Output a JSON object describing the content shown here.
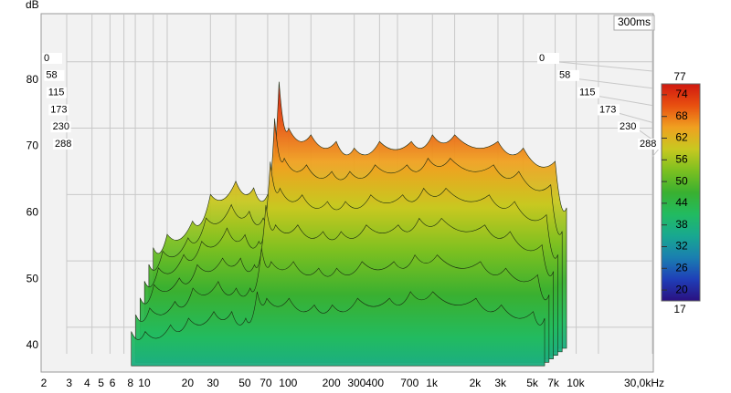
{
  "chart_data": {
    "type": "waterfall",
    "y_label": "dB",
    "z_label": "300ms",
    "xlog": true,
    "grid": true,
    "xlim": [
      2,
      30000
    ],
    "xticks": [
      2,
      3,
      4,
      5,
      6,
      8,
      10,
      20,
      30,
      50,
      70,
      100,
      200,
      300,
      400,
      700,
      {
        "value": 1000,
        "label": "1k"
      },
      {
        "value": 2000,
        "label": "2k"
      },
      {
        "value": 3000,
        "label": "3k"
      },
      {
        "value": 5000,
        "label": "5k"
      },
      {
        "value": 7000,
        "label": "7k"
      },
      {
        "value": 10000,
        "label": "10k"
      },
      {
        "value": 30000,
        "label": "30,0kHz"
      }
    ],
    "ylim": [
      36,
      90
    ],
    "yticks": [
      40,
      50,
      60,
      70,
      80
    ],
    "zlim": [
      0,
      300
    ],
    "zticks": [
      0,
      58,
      115,
      173,
      230,
      288
    ],
    "clim": [
      17,
      77
    ],
    "cticks": [
      20,
      26,
      32,
      38,
      44,
      50,
      56,
      62,
      68,
      74
    ],
    "colorscale": [
      "#2a1080",
      "#1f3fb8",
      "#1a7fb0",
      "#18a890",
      "#22bb60",
      "#3ab030",
      "#7cc020",
      "#c8c820",
      "#f0a020",
      "#e85010",
      "#d01810"
    ],
    "x": [
      8,
      10,
      15,
      20,
      30,
      40,
      50,
      60,
      70,
      100,
      150,
      200,
      300,
      500,
      700,
      1000,
      2000,
      3000,
      5000,
      6000
    ],
    "slices": [
      {
        "time": 0,
        "values": [
          52,
          54,
          56,
          60,
          62,
          61,
          60,
          77,
          70,
          69,
          68,
          67,
          68,
          68,
          69,
          69,
          68,
          67,
          65,
          58
        ]
      },
      {
        "time": 58,
        "values": [
          50,
          52,
          54,
          57,
          59,
          58,
          57,
          72,
          66,
          65,
          64,
          64,
          65,
          65,
          66,
          66,
          65,
          64,
          62,
          55
        ]
      },
      {
        "time": 115,
        "values": [
          48,
          50,
          52,
          54,
          56,
          55,
          54,
          66,
          62,
          61,
          60,
          60,
          61,
          61,
          62,
          62,
          61,
          60,
          58,
          52
        ]
      },
      {
        "time": 173,
        "values": [
          46,
          48,
          49,
          51,
          52,
          52,
          51,
          60,
          57,
          57,
          56,
          56,
          57,
          57,
          58,
          58,
          57,
          56,
          54,
          50
        ]
      },
      {
        "time": 230,
        "values": [
          44,
          45,
          46,
          48,
          49,
          48,
          48,
          54,
          52,
          52,
          51,
          51,
          52,
          52,
          53,
          53,
          52,
          51,
          50,
          47
        ]
      },
      {
        "time": 288,
        "values": [
          42,
          42,
          43,
          44,
          45,
          45,
          44,
          48,
          47,
          47,
          46,
          46,
          47,
          47,
          48,
          48,
          47,
          46,
          45,
          44
        ]
      }
    ]
  }
}
